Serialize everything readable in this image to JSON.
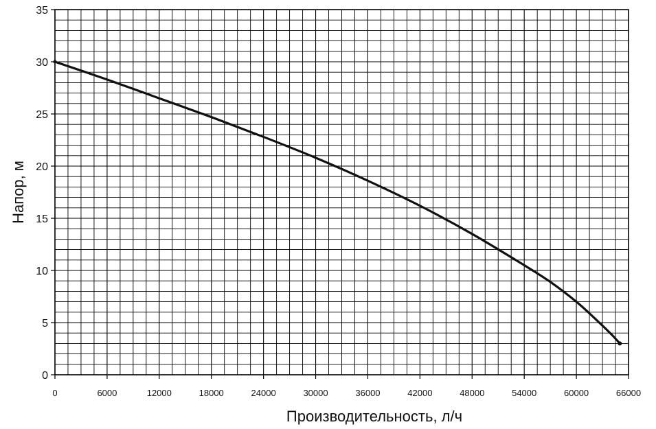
{
  "chart_data": {
    "type": "line",
    "title": "",
    "xlabel": "Производительность, л/ч",
    "ylabel": "Напор, м",
    "xlim": [
      0,
      66000
    ],
    "ylim": [
      0,
      35
    ],
    "grid": true,
    "x_ticks": [
      0,
      6000,
      12000,
      18000,
      24000,
      30000,
      36000,
      42000,
      48000,
      54000,
      60000,
      66000
    ],
    "x_tick_labels": [
      "0",
      "6000",
      "12000",
      "18000",
      "24000",
      "30000",
      "36000",
      "42000",
      "48000",
      "54000",
      "60000",
      "66000"
    ],
    "y_ticks": [
      0,
      5,
      10,
      15,
      20,
      25,
      30,
      35
    ],
    "y_tick_labels": [
      "0",
      "5",
      "10",
      "15",
      "20",
      "25",
      "30",
      "35"
    ],
    "series": [
      {
        "x": [
          0,
          6000,
          12000,
          18000,
          24000,
          30000,
          36000,
          42000,
          48000,
          54000,
          57000,
          60000,
          62000,
          64000,
          65000
        ],
        "y": [
          30,
          28.3,
          26.5,
          24.7,
          22.8,
          20.8,
          18.6,
          16.2,
          13.5,
          10.5,
          8.9,
          7.0,
          5.5,
          3.9,
          3.0
        ]
      }
    ]
  }
}
